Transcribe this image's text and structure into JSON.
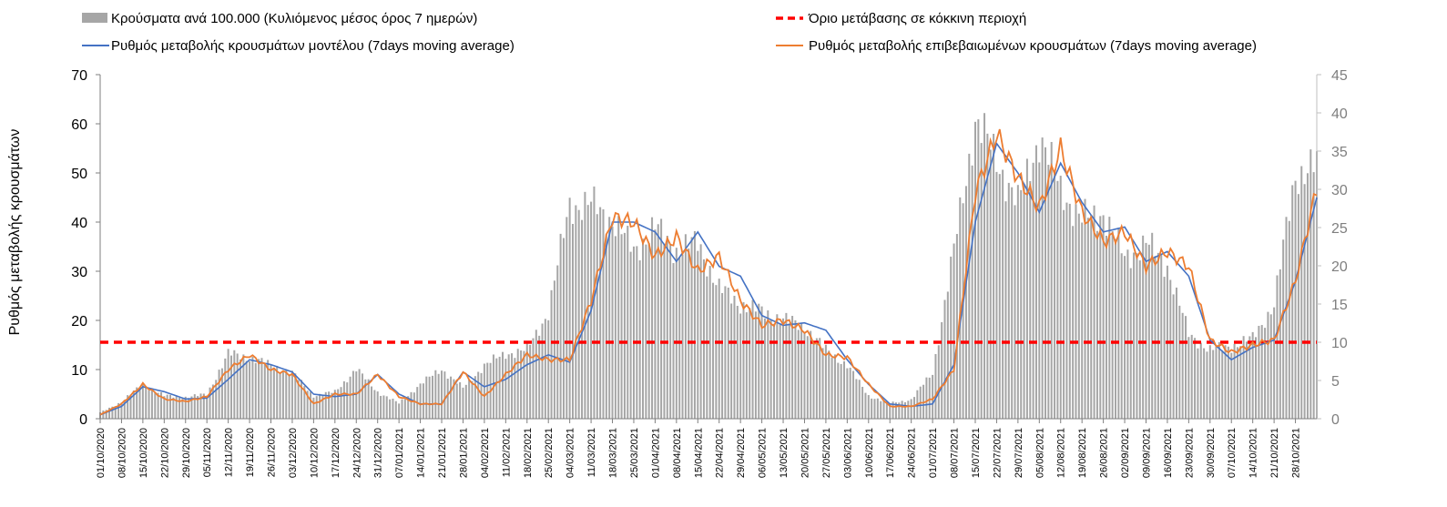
{
  "chart_data": {
    "type": "bar+line",
    "ylabel": "Ρυθμός μεταβολής κρουσμάτων",
    "ylim_left": [
      0,
      70
    ],
    "yticks_left": [
      "0",
      "10",
      "20",
      "30",
      "40",
      "50",
      "60",
      "70"
    ],
    "ylim_right": [
      0,
      45
    ],
    "yticks_right": [
      "0",
      "5",
      "10",
      "15",
      "20",
      "25",
      "30",
      "35",
      "40",
      "45"
    ],
    "x_start_date": "01/10/2020",
    "x_end_date": "04/11/2021",
    "xticks": [
      "01/10/2020",
      "08/10/2020",
      "15/10/2020",
      "22/10/2020",
      "29/10/2020",
      "05/11/2020",
      "12/11/2020",
      "19/11/2020",
      "26/11/2020",
      "03/12/2020",
      "10/12/2020",
      "17/12/2020",
      "24/12/2020",
      "31/12/2020",
      "07/01/2021",
      "14/01/2021",
      "21/01/2021",
      "28/01/2021",
      "04/02/2021",
      "11/02/2021",
      "18/02/2021",
      "25/02/2021",
      "04/03/2021",
      "11/03/2021",
      "18/03/2021",
      "25/03/2021",
      "01/04/2021",
      "08/04/2021",
      "15/04/2021",
      "22/04/2021",
      "29/04/2021",
      "06/05/2021",
      "13/05/2021",
      "20/05/2021",
      "27/05/2021",
      "03/06/2021",
      "10/06/2021",
      "17/06/2021",
      "24/06/2021",
      "01/07/2021",
      "08/07/2021",
      "15/07/2021",
      "22/07/2021",
      "29/07/2021",
      "05/08/2021",
      "12/08/2021",
      "19/08/2021",
      "26/08/2021",
      "02/09/2021",
      "09/09/2021",
      "16/09/2021",
      "23/09/2021",
      "30/09/2021",
      "07/10/2021",
      "14/10/2021",
      "21/10/2021",
      "28/10/2021"
    ],
    "legend": [
      {
        "label": "Κρούσματα ανά 100.000 (Κυλιόμενος μέσος όρος 7 ημερών)",
        "color": "#a6a6a6",
        "kind": "bar"
      },
      {
        "label": "Όριο μετάβασης σε κόκκινη περιοχή",
        "color": "#ff0000",
        "kind": "dashed"
      },
      {
        "label": "Ρυθμός μεταβολής κρουσμάτων μοντέλου (7days moving average)",
        "color": "#4472c4",
        "kind": "line"
      },
      {
        "label": "Ρυθμός μεταβολής επιβεβαιωμένων κρουσμάτων (7days moving average)",
        "color": "#ed7d31",
        "kind": "line"
      }
    ],
    "threshold": {
      "axis": "right",
      "value": 10
    },
    "series": [
      {
        "name": "Ρυθμός μεταβολής κρουσμάτων μοντέλου (7days moving average)",
        "axis": "left",
        "color": "#4472c4",
        "points": [
          [
            "01/10/2020",
            0.8
          ],
          [
            "08/10/2020",
            2.5
          ],
          [
            "15/10/2020",
            6.5
          ],
          [
            "22/10/2020",
            5.5
          ],
          [
            "29/10/2020",
            4
          ],
          [
            "05/11/2020",
            4.2
          ],
          [
            "12/11/2020",
            8
          ],
          [
            "19/11/2020",
            12
          ],
          [
            "26/11/2020",
            11
          ],
          [
            "03/12/2020",
            9.5
          ],
          [
            "10/12/2020",
            5
          ],
          [
            "17/12/2020",
            4.5
          ],
          [
            "24/12/2020",
            5
          ],
          [
            "31/12/2020",
            9
          ],
          [
            "07/01/2021",
            5
          ],
          [
            "14/01/2021",
            3
          ],
          [
            "21/01/2021",
            3
          ],
          [
            "28/01/2021",
            9.5
          ],
          [
            "04/02/2021",
            6.5
          ],
          [
            "11/02/2021",
            8
          ],
          [
            "18/02/2021",
            11
          ],
          [
            "25/02/2021",
            13
          ],
          [
            "04/03/2021",
            11.5
          ],
          [
            "11/03/2021",
            22
          ],
          [
            "18/03/2021",
            40
          ],
          [
            "25/03/2021",
            40
          ],
          [
            "01/04/2021",
            38
          ],
          [
            "08/04/2021",
            32
          ],
          [
            "15/04/2021",
            38
          ],
          [
            "22/04/2021",
            31
          ],
          [
            "29/04/2021",
            29
          ],
          [
            "06/05/2021",
            21
          ],
          [
            "13/05/2021",
            19
          ],
          [
            "20/05/2021",
            19.5
          ],
          [
            "27/05/2021",
            18
          ],
          [
            "03/06/2021",
            12
          ],
          [
            "10/06/2021",
            7
          ],
          [
            "17/06/2021",
            3
          ],
          [
            "24/06/2021",
            2.5
          ],
          [
            "01/07/2021",
            3
          ],
          [
            "08/07/2021",
            11
          ],
          [
            "15/07/2021",
            40
          ],
          [
            "22/07/2021",
            56
          ],
          [
            "29/07/2021",
            50
          ],
          [
            "05/08/2021",
            42
          ],
          [
            "12/08/2021",
            52
          ],
          [
            "19/08/2021",
            44
          ],
          [
            "26/08/2021",
            38
          ],
          [
            "02/09/2021",
            39
          ],
          [
            "09/09/2021",
            32
          ],
          [
            "16/09/2021",
            34
          ],
          [
            "23/09/2021",
            29
          ],
          [
            "30/09/2021",
            16
          ],
          [
            "07/10/2021",
            12
          ],
          [
            "14/10/2021",
            14.5
          ],
          [
            "21/10/2021",
            16
          ],
          [
            "28/10/2021",
            28
          ],
          [
            "04/11/2021",
            45
          ]
        ]
      },
      {
        "name": "Ρυθμός μεταβολής επιβεβαιωμένων κρουσμάτων (7days moving average)",
        "axis": "left",
        "color": "#ed7d31",
        "points": [
          [
            "01/10/2020",
            0.8
          ],
          [
            "08/10/2020",
            3
          ],
          [
            "15/10/2020",
            7
          ],
          [
            "22/10/2020",
            4
          ],
          [
            "29/10/2020",
            3.5
          ],
          [
            "05/11/2020",
            4.5
          ],
          [
            "12/11/2020",
            10
          ],
          [
            "19/11/2020",
            13
          ],
          [
            "26/11/2020",
            10
          ],
          [
            "03/12/2020",
            9
          ],
          [
            "10/12/2020",
            3
          ],
          [
            "17/12/2020",
            5
          ],
          [
            "24/12/2020",
            5
          ],
          [
            "31/12/2020",
            9
          ],
          [
            "07/01/2021",
            4.5
          ],
          [
            "14/01/2021",
            3
          ],
          [
            "21/01/2021",
            3
          ],
          [
            "28/01/2021",
            9.5
          ],
          [
            "04/02/2021",
            4.5
          ],
          [
            "11/02/2021",
            9
          ],
          [
            "18/02/2021",
            13
          ],
          [
            "25/02/2021",
            12
          ],
          [
            "04/03/2021",
            12
          ],
          [
            "11/03/2021",
            24
          ],
          [
            "18/03/2021",
            41
          ],
          [
            "25/03/2021",
            40
          ],
          [
            "01/04/2021",
            33
          ],
          [
            "08/04/2021",
            37
          ],
          [
            "15/04/2021",
            30
          ],
          [
            "22/04/2021",
            33
          ],
          [
            "29/04/2021",
            24
          ],
          [
            "06/05/2021",
            19
          ],
          [
            "13/05/2021",
            20
          ],
          [
            "20/05/2021",
            18
          ],
          [
            "27/05/2021",
            13
          ],
          [
            "03/06/2021",
            12.5
          ],
          [
            "10/06/2021",
            7
          ],
          [
            "17/06/2021",
            2.5
          ],
          [
            "24/06/2021",
            2.5
          ],
          [
            "01/07/2021",
            4
          ],
          [
            "08/07/2021",
            10
          ],
          [
            "15/07/2021",
            46
          ],
          [
            "22/07/2021",
            58
          ],
          [
            "29/07/2021",
            49
          ],
          [
            "05/08/2021",
            43
          ],
          [
            "12/08/2021",
            55
          ],
          [
            "19/08/2021",
            42
          ],
          [
            "26/08/2021",
            36
          ],
          [
            "02/09/2021",
            38
          ],
          [
            "09/09/2021",
            31
          ],
          [
            "16/09/2021",
            34
          ],
          [
            "23/09/2021",
            31
          ],
          [
            "30/09/2021",
            16
          ],
          [
            "07/10/2021",
            13.5
          ],
          [
            "14/10/2021",
            15
          ],
          [
            "21/10/2021",
            16
          ],
          [
            "28/10/2021",
            28
          ],
          [
            "04/11/2021",
            47
          ]
        ]
      },
      {
        "name": "Κρούσματα ανά 100.000 (Κυλιόμενος μέσος όρος 7 ημερών)",
        "axis": "right",
        "color": "#a6a6a6",
        "points": [
          [
            "01/10/2020",
            0.8
          ],
          [
            "08/10/2020",
            2.2
          ],
          [
            "15/10/2020",
            4.5
          ],
          [
            "22/10/2020",
            3
          ],
          [
            "29/10/2020",
            2.8
          ],
          [
            "05/11/2020",
            3.2
          ],
          [
            "12/11/2020",
            8.5
          ],
          [
            "19/11/2020",
            8
          ],
          [
            "26/11/2020",
            7
          ],
          [
            "03/12/2020",
            6
          ],
          [
            "10/12/2020",
            3
          ],
          [
            "17/12/2020",
            3.5
          ],
          [
            "24/12/2020",
            6.5
          ],
          [
            "31/12/2020",
            3.5
          ],
          [
            "07/01/2021",
            2
          ],
          [
            "14/01/2021",
            4.5
          ],
          [
            "21/01/2021",
            6.5
          ],
          [
            "28/01/2021",
            4
          ],
          [
            "04/02/2021",
            7
          ],
          [
            "11/02/2021",
            8.5
          ],
          [
            "18/02/2021",
            9
          ],
          [
            "25/02/2021",
            14
          ],
          [
            "04/03/2021",
            28
          ],
          [
            "11/03/2021",
            28
          ],
          [
            "18/03/2021",
            26
          ],
          [
            "25/03/2021",
            22
          ],
          [
            "01/04/2021",
            25
          ],
          [
            "08/04/2021",
            22
          ],
          [
            "15/04/2021",
            23
          ],
          [
            "22/04/2021",
            17
          ],
          [
            "29/04/2021",
            15
          ],
          [
            "06/05/2021",
            14
          ],
          [
            "13/05/2021",
            13
          ],
          [
            "20/05/2021",
            12
          ],
          [
            "27/05/2021",
            9
          ],
          [
            "03/06/2021",
            7
          ],
          [
            "10/06/2021",
            3
          ],
          [
            "17/06/2021",
            2
          ],
          [
            "24/06/2021",
            2.5
          ],
          [
            "01/07/2021",
            6
          ],
          [
            "08/07/2021",
            22
          ],
          [
            "15/07/2021",
            39
          ],
          [
            "22/07/2021",
            34
          ],
          [
            "29/07/2021",
            28
          ],
          [
            "05/08/2021",
            37
          ],
          [
            "12/08/2021",
            30
          ],
          [
            "19/08/2021",
            26
          ],
          [
            "26/08/2021",
            27
          ],
          [
            "02/09/2021",
            21
          ],
          [
            "09/09/2021",
            23
          ],
          [
            "16/09/2021",
            20
          ],
          [
            "23/09/2021",
            11
          ],
          [
            "30/09/2021",
            9
          ],
          [
            "07/10/2021",
            9.5
          ],
          [
            "14/10/2021",
            10.5
          ],
          [
            "21/10/2021",
            15
          ],
          [
            "28/10/2021",
            32
          ],
          [
            "04/11/2021",
            33
          ]
        ]
      }
    ]
  }
}
